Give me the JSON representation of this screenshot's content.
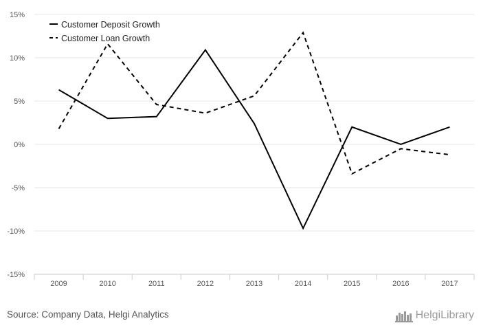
{
  "chart_data": {
    "type": "line",
    "categories": [
      "2009",
      "2010",
      "2011",
      "2012",
      "2013",
      "2014",
      "2015",
      "2016",
      "2017"
    ],
    "series": [
      {
        "name": "Customer Deposit Growth",
        "values": [
          6.3,
          3.0,
          3.2,
          10.9,
          2.4,
          -9.7,
          2.0,
          0.0,
          2.0
        ],
        "style": "solid",
        "color": "#000000"
      },
      {
        "name": "Customer Loan Growth",
        "values": [
          1.8,
          11.6,
          4.6,
          3.6,
          5.6,
          12.9,
          -3.4,
          -0.5,
          -1.2
        ],
        "style": "dashed",
        "color": "#000000"
      }
    ],
    "ylim": [
      -15,
      15
    ],
    "yticks": [
      15,
      10,
      5,
      0,
      -5,
      -10,
      -15
    ],
    "ytick_labels": [
      "15%",
      "10%",
      "5%",
      "0%",
      "-5%",
      "-10%",
      "-15%"
    ],
    "grid": true,
    "legend_position": "top-left",
    "title": "",
    "xlabel": "",
    "ylabel": ""
  },
  "footer": {
    "source": "Source: Company Data, Helgi Analytics",
    "brand": "HelgiLibrary"
  },
  "colors": {
    "grid": "#e6e6e6",
    "axis": "#cccccc",
    "line": "#000000",
    "brand": "#9a9a9a"
  }
}
